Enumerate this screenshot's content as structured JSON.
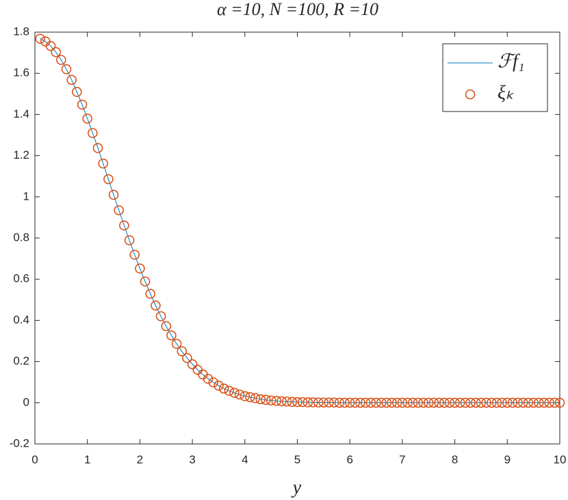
{
  "chart_data": {
    "type": "line",
    "title": "α =10, N =100, R =10",
    "x_label": "y",
    "x": [
      0.1,
      0.2,
      0.3,
      0.4,
      0.5,
      0.6,
      0.7,
      0.8,
      0.9,
      1.0,
      1.1,
      1.2,
      1.3,
      1.4,
      1.5,
      1.6,
      1.7,
      1.8,
      1.9,
      2.0,
      2.1,
      2.2,
      2.3,
      2.4,
      2.5,
      2.6,
      2.7,
      2.8,
      2.9,
      3.0,
      3.1,
      3.2,
      3.3,
      3.4,
      3.5,
      3.6,
      3.7,
      3.8,
      3.9,
      4.0,
      4.1,
      4.2,
      4.3,
      4.4,
      4.5,
      4.6,
      4.7,
      4.8,
      4.9,
      5.0,
      5.1,
      5.2,
      5.3,
      5.4,
      5.5,
      5.6,
      5.7,
      5.8,
      5.9,
      6.0,
      6.1,
      6.2,
      6.3,
      6.4,
      6.5,
      6.6,
      6.7,
      6.8,
      6.9,
      7.0,
      7.1,
      7.2,
      7.3,
      7.4,
      7.5,
      7.6,
      7.7,
      7.8,
      7.9,
      8.0,
      8.1,
      8.2,
      8.3,
      8.4,
      8.5,
      8.6,
      8.7,
      8.8,
      8.9,
      9.0,
      9.1,
      9.2,
      9.3,
      9.4,
      9.5,
      9.6,
      9.7,
      9.8,
      9.9,
      10.0
    ],
    "series": [
      {
        "name": "ℱf₁",
        "style": "line",
        "color": "#0072bd",
        "values": [
          1.768,
          1.755,
          1.733,
          1.703,
          1.665,
          1.62,
          1.568,
          1.51,
          1.448,
          1.38,
          1.31,
          1.237,
          1.162,
          1.086,
          1.01,
          0.935,
          0.861,
          0.789,
          0.719,
          0.652,
          0.589,
          0.529,
          0.472,
          0.42,
          0.372,
          0.327,
          0.286,
          0.25,
          0.217,
          0.187,
          0.16,
          0.137,
          0.116,
          0.099,
          0.083,
          0.069,
          0.058,
          0.048,
          0.04,
          0.032,
          0.027,
          0.022,
          0.017,
          0.014,
          0.011,
          0.009,
          0.007,
          0.006,
          0.004,
          0.003,
          0.003,
          0.002,
          0.002,
          0.001,
          0.001,
          0.001,
          0.001,
          0,
          0,
          0,
          0,
          0,
          0,
          0,
          0,
          0,
          0,
          0,
          0,
          0,
          0,
          0,
          0,
          0,
          0,
          0,
          0,
          0,
          0,
          0,
          0,
          0,
          0,
          0,
          0,
          0,
          0,
          0,
          0,
          0,
          0,
          0,
          0,
          0,
          0,
          0,
          0,
          0,
          0,
          0
        ]
      },
      {
        "name": "ξₖ",
        "style": "markers",
        "color": "#d95319",
        "values": [
          1.768,
          1.755,
          1.733,
          1.703,
          1.665,
          1.62,
          1.568,
          1.51,
          1.448,
          1.38,
          1.31,
          1.237,
          1.162,
          1.086,
          1.01,
          0.935,
          0.861,
          0.789,
          0.719,
          0.652,
          0.589,
          0.529,
          0.472,
          0.42,
          0.372,
          0.327,
          0.286,
          0.25,
          0.217,
          0.187,
          0.16,
          0.137,
          0.116,
          0.099,
          0.083,
          0.069,
          0.058,
          0.048,
          0.04,
          0.032,
          0.027,
          0.022,
          0.017,
          0.014,
          0.011,
          0.009,
          0.007,
          0.006,
          0.004,
          0.003,
          0.003,
          0.002,
          0.002,
          0.001,
          0.001,
          0.001,
          0.001,
          0,
          0,
          0,
          0,
          0,
          0,
          0,
          0,
          0,
          0,
          0,
          0,
          0,
          0,
          0,
          0,
          0,
          0,
          0,
          0,
          0,
          0,
          0,
          0,
          0,
          0,
          0,
          0,
          0,
          0,
          0,
          0,
          0,
          0,
          0,
          0,
          0,
          0,
          0,
          0,
          0,
          0,
          0
        ]
      }
    ],
    "xlim": [
      0,
      10
    ],
    "ylim": [
      -0.2,
      1.8
    ],
    "xticks": [
      0,
      1,
      2,
      3,
      4,
      5,
      6,
      7,
      8,
      9,
      10
    ],
    "yticks": [
      -0.2,
      0,
      0.2,
      0.4,
      0.6,
      0.8,
      1,
      1.2,
      1.4,
      1.6,
      1.8
    ],
    "legend": "upper right",
    "grid": false
  }
}
